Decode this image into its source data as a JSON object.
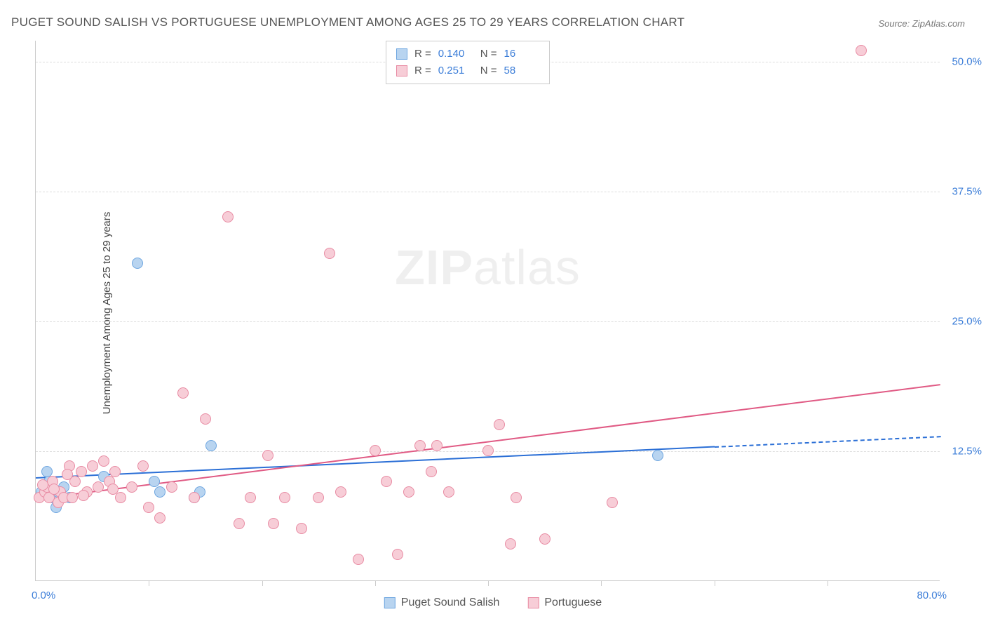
{
  "title": "PUGET SOUND SALISH VS PORTUGUESE UNEMPLOYMENT AMONG AGES 25 TO 29 YEARS CORRELATION CHART",
  "source": "Source: ZipAtlas.com",
  "watermark_bold": "ZIP",
  "watermark_light": "atlas",
  "chart": {
    "type": "scatter",
    "ylabel": "Unemployment Among Ages 25 to 29 years",
    "xlim": [
      0,
      80
    ],
    "ylim": [
      0,
      52
    ],
    "xaxis_min_label": "0.0%",
    "xaxis_max_label": "80.0%",
    "xtick_positions": [
      10,
      20,
      30,
      40,
      50,
      60,
      70
    ],
    "yticks": [
      {
        "v": 12.5,
        "label": "12.5%"
      },
      {
        "v": 25.0,
        "label": "25.0%"
      },
      {
        "v": 37.5,
        "label": "37.5%"
      },
      {
        "v": 50.0,
        "label": "50.0%"
      }
    ],
    "grid_color": "#dddddd",
    "background_color": "#ffffff",
    "marker_radius": 8,
    "series": [
      {
        "name": "Puget Sound Salish",
        "key": "salish",
        "fill": "#b8d4f0",
        "stroke": "#6ea6e0",
        "line_color": "#2b6fd6",
        "R": "0.140",
        "N": "16",
        "points": [
          [
            0.5,
            8.5
          ],
          [
            1.0,
            10.5
          ],
          [
            1.2,
            9.5
          ],
          [
            1.5,
            8.0
          ],
          [
            1.8,
            7.0
          ],
          [
            2.0,
            8.5
          ],
          [
            2.5,
            9.0
          ],
          [
            3.0,
            8.0
          ],
          [
            6.0,
            10.0
          ],
          [
            9.0,
            30.5
          ],
          [
            15.5,
            13.0
          ],
          [
            10.5,
            9.5
          ],
          [
            11.0,
            8.5
          ],
          [
            14.0,
            8.0
          ],
          [
            14.5,
            8.5
          ],
          [
            55.0,
            12.0
          ]
        ],
        "trend": {
          "x1": 0,
          "y1": 10.0,
          "x2": 60,
          "y2": 13.0,
          "dash_to_x": 80,
          "dash_to_y": 14.0
        }
      },
      {
        "name": "Portuguese",
        "key": "portuguese",
        "fill": "#f7cdd7",
        "stroke": "#e88ba3",
        "line_color": "#e05a84",
        "R": "0.251",
        "N": "58",
        "points": [
          [
            0.3,
            8.0
          ],
          [
            0.8,
            8.5
          ],
          [
            1.0,
            9.0
          ],
          [
            1.2,
            8.0
          ],
          [
            1.5,
            9.5
          ],
          [
            2.0,
            7.5
          ],
          [
            2.2,
            8.5
          ],
          [
            2.5,
            8.0
          ],
          [
            3.0,
            11.0
          ],
          [
            3.5,
            9.5
          ],
          [
            4.0,
            10.5
          ],
          [
            4.5,
            8.5
          ],
          [
            5.0,
            11.0
          ],
          [
            5.5,
            9.0
          ],
          [
            6.0,
            11.5
          ],
          [
            6.5,
            9.5
          ],
          [
            7.0,
            10.5
          ],
          [
            7.5,
            8.0
          ],
          [
            8.5,
            9.0
          ],
          [
            9.5,
            11.0
          ],
          [
            10.0,
            7.0
          ],
          [
            11.0,
            6.0
          ],
          [
            12.0,
            9.0
          ],
          [
            13.0,
            18.0
          ],
          [
            14.0,
            8.0
          ],
          [
            15.0,
            15.5
          ],
          [
            17.0,
            35.0
          ],
          [
            18.0,
            5.5
          ],
          [
            19.0,
            8.0
          ],
          [
            20.5,
            12.0
          ],
          [
            21.0,
            5.5
          ],
          [
            22.0,
            8.0
          ],
          [
            23.5,
            5.0
          ],
          [
            25.0,
            8.0
          ],
          [
            26.0,
            31.5
          ],
          [
            27.0,
            8.5
          ],
          [
            28.5,
            2.0
          ],
          [
            30.0,
            12.5
          ],
          [
            31.0,
            9.5
          ],
          [
            32.0,
            2.5
          ],
          [
            33.0,
            8.5
          ],
          [
            34.0,
            13.0
          ],
          [
            35.0,
            10.5
          ],
          [
            35.5,
            13.0
          ],
          [
            36.5,
            8.5
          ],
          [
            40.0,
            12.5
          ],
          [
            41.0,
            15.0
          ],
          [
            42.0,
            3.5
          ],
          [
            42.5,
            8.0
          ],
          [
            45.0,
            4.0
          ],
          [
            51.0,
            7.5
          ],
          [
            73.0,
            51.0
          ],
          [
            6.8,
            8.8
          ],
          [
            4.2,
            8.2
          ],
          [
            2.8,
            10.2
          ],
          [
            1.6,
            8.8
          ],
          [
            0.6,
            9.2
          ],
          [
            3.2,
            8.0
          ]
        ],
        "trend": {
          "x1": 0,
          "y1": 8.0,
          "x2": 80,
          "y2": 19.0
        }
      }
    ]
  },
  "stats_legend": {
    "R_label": "R =",
    "N_label": "N ="
  },
  "bottom_legend": [
    {
      "swatch_fill": "#b8d4f0",
      "swatch_stroke": "#6ea6e0",
      "label": "Puget Sound Salish"
    },
    {
      "swatch_fill": "#f7cdd7",
      "swatch_stroke": "#e88ba3",
      "label": "Portuguese"
    }
  ]
}
